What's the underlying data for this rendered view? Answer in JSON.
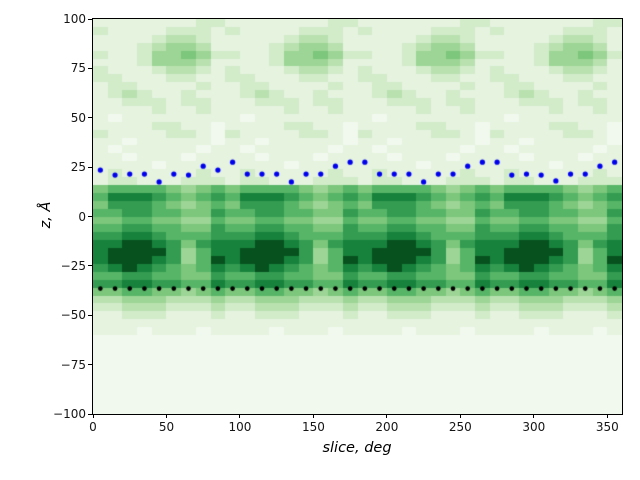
{
  "figure": {
    "background": "#ffffff",
    "plot_border_color": "#000000"
  },
  "chart_data": {
    "type": "heatmap",
    "title": "",
    "xlabel": "slice, deg",
    "ylabel": "z, Å",
    "xlim": [
      0,
      360
    ],
    "ylim": [
      -100,
      100
    ],
    "grid": false,
    "legend": null,
    "x_ticks": {
      "values": [
        0,
        50,
        100,
        150,
        200,
        250,
        300,
        350
      ],
      "labels": [
        "0",
        "50",
        "100",
        "150",
        "200",
        "250",
        "300",
        "350"
      ]
    },
    "y_ticks": {
      "values": [
        100,
        75,
        50,
        25,
        0,
        -25,
        -50,
        -75,
        -100
      ],
      "labels": [
        "100",
        "75",
        "50",
        "25",
        "0",
        "−25",
        "−50",
        "−75",
        "−100"
      ]
    },
    "colormap": {
      "name": "Greens",
      "levels": [
        "#f1f8ee",
        "#e5f3df",
        "#d2ecc9",
        "#b9e1b0",
        "#9cd595",
        "#7cc77c",
        "#57b567",
        "#339c51",
        "#17823c",
        "#07511f"
      ]
    },
    "heatmap": {
      "x_start": 0,
      "x_step": 10,
      "z_start": 100,
      "z_step": -4,
      "intensity_scale": "digit 0 = min density (palest), 9 = max density (darkest green)",
      "rows": [
        "111111122111111122111111122111111122",
        "211112221211112221211112221211112221",
        "111123321111123321111123321111123321",
        "111234431111234431111234431111234431",
        "211244542211244542211244542211244542",
        "111244431111244431111244431111244431",
        "211123321211123321211123321211123321",
        "221112211221112211221112211221112211",
        "122111121122111121122111121122111121",
        "123211211123211211123211211123211211",
        "112221221112221221112221221112221221",
        "111121121111121121111121121111121121",
        "101111111101111111101111111101111111",
        "111122110111122110111122110111122110",
        "211112210211112210211112210211112210",
        "110111110110111110110111110110111110",
        "101111101101111101101111101101111101",
        "110111011110111011110111011110111011",
        "111101111111101111111101111111101111",
        "121111121121111121121111121121111121",
        "122111222122111222122111222122111222",
        "566665456566665456566665456566665456",
        "688876567688876567688876567688876567",
        "577765456577765456577765456577765456",
        "667766557667766557667766557667766557",
        "556655446556655446556655446556655446",
        "667766557667766557667766557667766557",
        "778876667778876667778876667778876667",
        "889987578889987578889987578889987578",
        "899997468899997468899997468899997468",
        "899987469899987469899987469899987469",
        "789876568789876568789876568789876568",
        "667766557667766557667766557667766557",
        "778877668778877668778877668778877668",
        "556655456556655456556655456556655456",
        "334443334334443334334443334334443334",
        "223332223223332223223332223223332223",
        "112221112112221112112221112112221112",
        "111111111111111111111111111111111111",
        "111011101111011101111011101111011101",
        "000000000000000000000000000000000000",
        "000000000000000000000000000000000000",
        "000000000000000000000000000000000000",
        "000000000000000000000000000000000000",
        "000000000000000000000000000000000000",
        "000000000000000000000000000000000000",
        "000000000000000000000000000000000000",
        "000000000000000000000000000000000000",
        "000000000000000000000000000000000000",
        "000000000000000000000000000000000000"
      ]
    },
    "series": [
      {
        "name": "upper-interface-dots",
        "marker": "point",
        "color": "#0000ee",
        "marker_px": 2.6,
        "x": [
          5,
          15,
          25,
          35,
          45,
          55,
          65,
          75,
          85,
          95,
          105,
          115,
          125,
          135,
          145,
          155,
          165,
          175,
          185,
          195,
          205,
          215,
          225,
          235,
          245,
          255,
          265,
          275,
          285,
          295,
          305,
          315,
          325,
          335,
          345,
          355
        ],
        "y": [
          23.5,
          21,
          21.5,
          21.5,
          17.5,
          21.5,
          21,
          25.5,
          23.5,
          27.5,
          21.5,
          21.5,
          21.5,
          17.5,
          21.5,
          21.5,
          25.5,
          27.5,
          27.5,
          21.5,
          21.5,
          21.5,
          17.5,
          21.5,
          21.5,
          25.5,
          27.5,
          27.5,
          21,
          21.5,
          21,
          18,
          21.5,
          21.5,
          25.5,
          27.5
        ]
      },
      {
        "name": "lower-interface-dots",
        "marker": "point",
        "color": "#000000",
        "marker_px": 2.3,
        "x": [
          5,
          15,
          25,
          35,
          45,
          55,
          65,
          75,
          85,
          95,
          105,
          115,
          125,
          135,
          145,
          155,
          165,
          175,
          185,
          195,
          205,
          215,
          225,
          235,
          245,
          255,
          265,
          275,
          285,
          295,
          305,
          315,
          325,
          335,
          345,
          355
        ],
        "y": [
          -36.5,
          -36.5,
          -36.5,
          -36.5,
          -36.5,
          -36.5,
          -36.5,
          -36.5,
          -36.5,
          -36.5,
          -36.5,
          -36.5,
          -36.5,
          -36.5,
          -36.5,
          -36.5,
          -36.5,
          -36.5,
          -36.5,
          -36.5,
          -36.5,
          -36.5,
          -36.5,
          -36.5,
          -36.5,
          -36.5,
          -36.5,
          -36.5,
          -36.5,
          -36.5,
          -36.5,
          -36.5,
          -36.5,
          -36.5,
          -36.5,
          -36.5
        ]
      }
    ]
  }
}
